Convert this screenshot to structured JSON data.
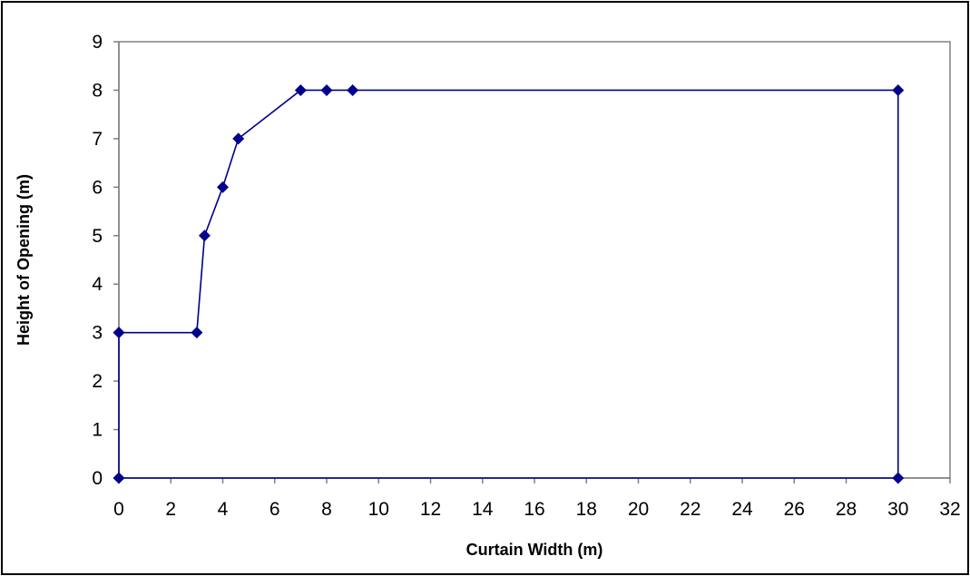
{
  "chart_data": {
    "type": "scatter",
    "title": "",
    "xlabel": "Curtain Width (m)",
    "ylabel": "Height of Opening (m)",
    "xlim": [
      0,
      32
    ],
    "ylim": [
      0,
      9
    ],
    "x_ticks": [
      0,
      2,
      4,
      6,
      8,
      10,
      12,
      14,
      16,
      18,
      20,
      22,
      24,
      26,
      28,
      30,
      32
    ],
    "y_ticks": [
      0,
      1,
      2,
      3,
      4,
      5,
      6,
      7,
      8,
      9
    ],
    "grid": false,
    "legend": "none",
    "line_style": "straight lines with diamond markers",
    "series": [
      {
        "color": "#00008B",
        "marker": "diamond",
        "points": [
          {
            "x": 0,
            "y": 0
          },
          {
            "x": 0,
            "y": 3
          },
          {
            "x": 3,
            "y": 3
          },
          {
            "x": 3.3,
            "y": 5
          },
          {
            "x": 4,
            "y": 6
          },
          {
            "x": 4.6,
            "y": 7
          },
          {
            "x": 7,
            "y": 8
          },
          {
            "x": 8,
            "y": 8
          },
          {
            "x": 9,
            "y": 8
          },
          {
            "x": 30,
            "y": 8
          },
          {
            "x": 30,
            "y": 0
          },
          {
            "x": 0,
            "y": 0
          }
        ]
      }
    ]
  }
}
